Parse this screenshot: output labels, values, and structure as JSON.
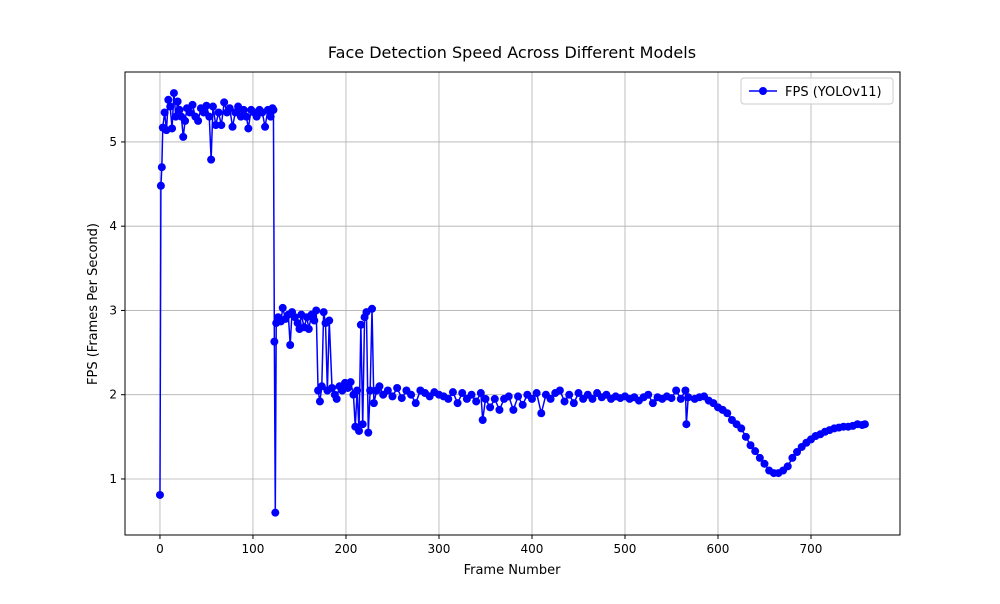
{
  "chart_data": {
    "type": "line",
    "title": "Face Detection Speed Across Different Models",
    "xlabel": "Frame Number",
    "ylabel": "FPS (Frames Per Second)",
    "x": [
      0,
      1,
      2,
      3,
      5,
      7,
      9,
      11,
      13,
      15,
      17,
      19,
      21,
      23,
      25,
      27,
      29,
      32,
      35,
      38,
      41,
      44,
      47,
      50,
      53,
      55,
      57,
      60,
      63,
      66,
      69,
      72,
      75,
      78,
      81,
      84,
      87,
      90,
      93,
      95,
      98,
      101,
      104,
      107,
      110,
      113,
      116,
      119,
      121,
      122,
      123,
      124,
      125,
      127,
      130,
      132,
      135,
      138,
      140,
      142,
      145,
      148,
      150,
      152,
      155,
      158,
      160,
      163,
      166,
      168,
      170,
      172,
      174,
      176,
      178,
      180,
      182,
      185,
      188,
      190,
      193,
      196,
      199,
      202,
      205,
      208,
      210,
      212,
      214,
      216,
      218,
      220,
      222,
      224,
      226,
      228,
      230,
      233,
      236,
      240,
      245,
      250,
      255,
      260,
      265,
      270,
      275,
      280,
      285,
      290,
      295,
      300,
      305,
      310,
      315,
      320,
      325,
      330,
      335,
      340,
      345,
      347,
      350,
      355,
      360,
      365,
      370,
      375,
      380,
      385,
      390,
      395,
      400,
      405,
      410,
      415,
      420,
      425,
      430,
      435,
      440,
      445,
      450,
      455,
      460,
      465,
      470,
      475,
      480,
      485,
      490,
      495,
      500,
      505,
      510,
      515,
      520,
      525,
      530,
      535,
      540,
      545,
      550,
      555,
      560,
      565,
      566,
      568,
      575,
      580,
      585,
      590,
      595,
      600,
      605,
      610,
      615,
      620,
      625,
      630,
      635,
      640,
      645,
      650,
      655,
      660,
      665,
      670,
      675,
      680,
      685,
      690,
      695,
      700,
      705,
      710,
      715,
      720,
      725,
      730,
      735,
      740,
      745,
      750,
      755,
      758
    ],
    "series": [
      {
        "name": "FPS (YOLOv11)",
        "color": "#0000ff",
        "values": [
          0.81,
          4.48,
          4.7,
          5.17,
          5.35,
          5.14,
          5.5,
          5.42,
          5.16,
          5.58,
          5.3,
          5.48,
          5.38,
          5.3,
          5.06,
          5.25,
          5.4,
          5.35,
          5.44,
          5.3,
          5.25,
          5.4,
          5.35,
          5.43,
          5.3,
          4.79,
          5.42,
          5.2,
          5.35,
          5.2,
          5.47,
          5.35,
          5.4,
          5.18,
          5.35,
          5.42,
          5.3,
          5.38,
          5.3,
          5.16,
          5.38,
          5.35,
          5.3,
          5.38,
          5.35,
          5.18,
          5.38,
          5.3,
          5.4,
          5.38,
          2.63,
          0.6,
          2.85,
          2.92,
          2.87,
          3.03,
          2.9,
          2.95,
          2.59,
          2.98,
          2.92,
          2.85,
          2.78,
          2.95,
          2.8,
          2.92,
          2.78,
          2.95,
          2.88,
          3.0,
          2.05,
          1.92,
          2.1,
          2.98,
          2.85,
          2.05,
          2.88,
          2.08,
          2.0,
          1.95,
          2.1,
          2.05,
          2.14,
          2.08,
          2.15,
          2.0,
          1.62,
          2.05,
          1.57,
          2.83,
          1.65,
          2.92,
          2.98,
          1.55,
          2.05,
          3.02,
          1.9,
          2.05,
          2.1,
          2.0,
          2.05,
          1.98,
          2.08,
          1.96,
          2.05,
          2.0,
          1.9,
          2.05,
          2.02,
          1.98,
          2.03,
          2.0,
          1.98,
          1.95,
          2.03,
          1.9,
          2.02,
          1.95,
          2.0,
          1.92,
          2.02,
          1.7,
          1.95,
          1.85,
          1.95,
          1.82,
          1.95,
          1.98,
          1.82,
          1.98,
          1.88,
          2.0,
          1.95,
          2.02,
          1.78,
          2.0,
          1.95,
          2.02,
          2.05,
          1.92,
          2.0,
          1.9,
          2.02,
          1.95,
          2.0,
          1.95,
          2.02,
          1.97,
          2.0,
          1.95,
          1.98,
          1.96,
          1.98,
          1.95,
          1.97,
          1.93,
          1.97,
          2.0,
          1.9,
          1.97,
          1.95,
          1.98,
          1.96,
          2.05,
          1.95,
          2.05,
          1.65,
          1.97,
          1.95,
          1.97,
          1.98,
          1.93,
          1.9,
          1.85,
          1.82,
          1.78,
          1.7,
          1.65,
          1.6,
          1.5,
          1.4,
          1.33,
          1.25,
          1.18,
          1.1,
          1.07,
          1.07,
          1.1,
          1.15,
          1.25,
          1.32,
          1.38,
          1.43,
          1.47,
          1.51,
          1.53,
          1.56,
          1.58,
          1.6,
          1.61,
          1.62,
          1.62,
          1.63,
          1.65,
          1.64,
          1.65
        ]
      }
    ],
    "xlim": [
      -37.6,
      795.7
    ],
    "ylim": [
      0.335,
      5.83
    ],
    "xticks": [
      0,
      100,
      200,
      300,
      400,
      500,
      600,
      700
    ],
    "yticks": [
      1,
      2,
      3,
      4,
      5
    ],
    "grid": true,
    "legend": "upper right"
  }
}
